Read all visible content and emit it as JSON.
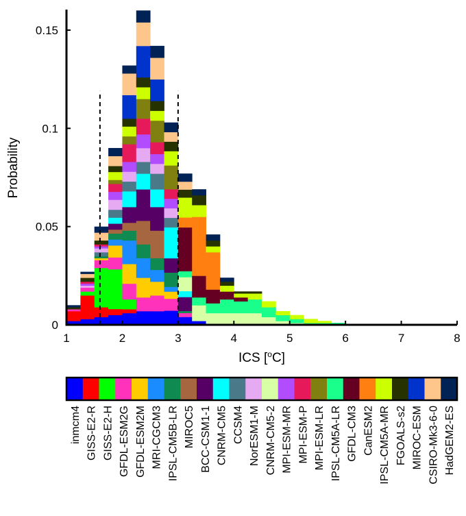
{
  "chart_data": {
    "type": "bar",
    "subtype": "stacked-histogram",
    "xlabel": "ICS [",
    "xlabel_sup": "o",
    "xlabel_unit": "C]",
    "ylabel": "Probability",
    "xlim": [
      1,
      8
    ],
    "ylim": [
      0,
      0.16
    ],
    "xticks": [
      1,
      2,
      3,
      4,
      5,
      6,
      7,
      8
    ],
    "xtick_labels": [
      "1",
      "2",
      "3",
      "4",
      "5",
      "6",
      "7",
      "8"
    ],
    "yticks": [
      0,
      0.05,
      0.1,
      0.15
    ],
    "ytick_labels": [
      "0",
      "0.05",
      "0.1",
      "0.15"
    ],
    "bin_width": 0.25,
    "bin_edges_start": [
      1.0,
      1.25,
      1.5,
      1.75,
      2.0,
      2.25,
      2.5,
      2.75,
      3.0,
      3.25,
      3.5,
      3.75,
      4.0,
      4.25,
      4.5,
      4.75,
      5.0,
      5.25,
      5.5,
      5.75
    ],
    "bin_totals": [
      0.01,
      0.027,
      0.05,
      0.09,
      0.132,
      0.16,
      0.142,
      0.103,
      0.077,
      0.069,
      0.046,
      0.024,
      0.017,
      0.017,
      0.012,
      0.007,
      0.005,
      0.003,
      0.002,
      0.001
    ],
    "dashed_lines_x": [
      1.6,
      3.0
    ],
    "dashed_lines_top": 0.119,
    "legend_position": "bottom",
    "series": [
      {
        "name": "inmcm4",
        "color": "#0000ff",
        "values": [
          0.002,
          0.003,
          0.004,
          0.005,
          0.006,
          0.007,
          0.007,
          0.006,
          0.004,
          0.002,
          0,
          0,
          0,
          0,
          0,
          0,
          0,
          0,
          0,
          0
        ]
      },
      {
        "name": "GISS-E2-R",
        "color": "#ff0000",
        "values": [
          0.005,
          0.012,
          0.005,
          0.003,
          0.002,
          0,
          0,
          0,
          0,
          0,
          0,
          0,
          0,
          0,
          0,
          0,
          0,
          0,
          0,
          0
        ]
      },
      {
        "name": "GISS-E2-H",
        "color": "#00ff00",
        "values": [
          0,
          0.002,
          0.02,
          0.02,
          0.005,
          0,
          0,
          0,
          0,
          0,
          0,
          0,
          0,
          0,
          0,
          0,
          0,
          0,
          0,
          0
        ]
      },
      {
        "name": "GFDL-ESM2G",
        "color": "#ff33bb",
        "values": [
          0.001,
          0.002,
          0.004,
          0.006,
          0.008,
          0.007,
          0.008,
          0.005,
          0.002,
          0,
          0,
          0,
          0,
          0,
          0,
          0,
          0,
          0,
          0,
          0
        ]
      },
      {
        "name": "GFDL-ESM2M",
        "color": "#ffcc00",
        "values": [
          0,
          0,
          0.001,
          0.006,
          0.01,
          0.01,
          0.007,
          0.003,
          0,
          0,
          0,
          0,
          0,
          0,
          0,
          0,
          0,
          0,
          0,
          0
        ]
      },
      {
        "name": "MRI-CGCM3",
        "color": "#1a8cff",
        "values": [
          0,
          0,
          0,
          0.003,
          0.012,
          0.01,
          0.006,
          0.002,
          0,
          0,
          0,
          0,
          0,
          0,
          0,
          0,
          0,
          0,
          0,
          0
        ]
      },
      {
        "name": "IPSL-CM5B-LR",
        "color": "#0f8a50",
        "values": [
          0,
          0,
          0.001,
          0.003,
          0.005,
          0.007,
          0.006,
          0.006,
          0.001,
          0,
          0,
          0,
          0,
          0,
          0,
          0,
          0,
          0,
          0,
          0
        ]
      },
      {
        "name": "MIROC5",
        "color": "#a66640",
        "values": [
          0,
          0,
          0,
          0.002,
          0.004,
          0.012,
          0.014,
          0,
          0,
          0,
          0,
          0,
          0,
          0,
          0,
          0,
          0,
          0,
          0,
          0
        ]
      },
      {
        "name": "BCC-CSM1-1",
        "color": "#560066",
        "values": [
          0,
          0,
          0,
          0.003,
          0.008,
          0.016,
          0.012,
          0.006,
          0.007,
          0,
          0,
          0,
          0,
          0,
          0,
          0,
          0,
          0,
          0,
          0
        ]
      },
      {
        "name": "CNRM-CM5",
        "color": "#00ffff",
        "values": [
          0,
          0,
          0,
          0.003,
          0.008,
          0.008,
          0.009,
          0.013,
          0.003,
          0,
          0,
          0,
          0,
          0,
          0,
          0,
          0,
          0,
          0,
          0
        ]
      },
      {
        "name": "CCSM4",
        "color": "#4a7a8a",
        "values": [
          0,
          0,
          0.002,
          0.004,
          0.005,
          0.006,
          0.008,
          0.004,
          0,
          0,
          0,
          0,
          0,
          0,
          0,
          0,
          0,
          0,
          0,
          0
        ]
      },
      {
        "name": "NorESM1-M",
        "color": "#e6aaf2",
        "values": [
          0,
          0.001,
          0.002,
          0.005,
          0.005,
          0.007,
          0.005,
          0.004,
          0,
          0,
          0,
          0,
          0,
          0,
          0,
          0,
          0,
          0,
          0,
          0
        ]
      },
      {
        "name": "CNRM-CM5-2",
        "color": "#d9ffa6",
        "values": [
          0,
          0,
          0,
          0,
          0,
          0,
          0,
          0,
          0.007,
          0.008,
          0.006,
          0.006,
          0.006,
          0.006,
          0.004,
          0.002,
          0.001,
          0,
          0,
          0
        ]
      },
      {
        "name": "MPI-ESM-MR",
        "color": "#b24dff",
        "values": [
          0,
          0.001,
          0.001,
          0.004,
          0.005,
          0.007,
          0.005,
          0.004,
          0,
          0,
          0,
          0,
          0,
          0,
          0,
          0,
          0,
          0,
          0,
          0
        ]
      },
      {
        "name": "MPI-ESM-P",
        "color": "#e6195a",
        "values": [
          0,
          0.001,
          0.001,
          0.004,
          0.009,
          0.008,
          0.006,
          0.004,
          0,
          0,
          0,
          0,
          0,
          0,
          0,
          0,
          0,
          0,
          0,
          0
        ]
      },
      {
        "name": "MPI-ESM-LR",
        "color": "#808010",
        "values": [
          0,
          0,
          0,
          0.002,
          0.004,
          0.01,
          0.011,
          0.01,
          0,
          0,
          0,
          0,
          0,
          0,
          0,
          0,
          0,
          0,
          0,
          0
        ]
      },
      {
        "name": "IPSL-CM5A-LR",
        "color": "#1aff8c",
        "values": [
          0,
          0,
          0,
          0,
          0,
          0,
          0,
          0,
          0.003,
          0.004,
          0.005,
          0.007,
          0.006,
          0.007,
          0.005,
          0.003,
          0.002,
          0.001,
          0.001,
          0.001
        ]
      },
      {
        "name": "GFDL-CM3",
        "color": "#660022",
        "values": [
          0,
          0,
          0,
          0,
          0,
          0,
          0,
          0,
          0.022,
          0.011,
          0.007,
          0.004,
          0.002,
          0,
          0,
          0,
          0,
          0,
          0,
          0
        ]
      },
      {
        "name": "CanESM2",
        "color": "#ff8010",
        "values": [
          0,
          0,
          0,
          0,
          0,
          0,
          0,
          0,
          0.005,
          0.03,
          0.019,
          0,
          0,
          0,
          0,
          0,
          0,
          0,
          0,
          0
        ]
      },
      {
        "name": "IPSL-CM5A-MR",
        "color": "#ccff00",
        "values": [
          0,
          0,
          0,
          0.004,
          0.005,
          0.006,
          0.005,
          0.006,
          0.01,
          0.006,
          0.003,
          0.003,
          0.002,
          0.003,
          0.003,
          0.002,
          0.002,
          0.002,
          0.001,
          0
        ]
      },
      {
        "name": "FGOALS-s2",
        "color": "#263300",
        "values": [
          0.001,
          0.002,
          0.002,
          0.003,
          0.004,
          0.005,
          0.005,
          0.004,
          0.004,
          0.005,
          0.003,
          0.002,
          0.001,
          0.001,
          0,
          0,
          0,
          0,
          0,
          0
        ]
      },
      {
        "name": "MIROC-ESM",
        "color": "#0033cc",
        "values": [
          0,
          0,
          0,
          0,
          0.012,
          0.016,
          0.011,
          0,
          0,
          0,
          0,
          0,
          0,
          0,
          0,
          0,
          0,
          0,
          0,
          0
        ]
      },
      {
        "name": "CSIRO-Mk3-6-0",
        "color": "#ffc68c",
        "values": [
          0,
          0.002,
          0.004,
          0.005,
          0.011,
          0.012,
          0.011,
          0.004,
          0.004,
          0,
          0,
          0,
          0,
          0,
          0,
          0,
          0,
          0,
          0,
          0
        ]
      },
      {
        "name": "HadGEM2-ES",
        "color": "#002255",
        "values": [
          0.001,
          0.001,
          0.003,
          0.004,
          0.004,
          0.006,
          0.006,
          0.004,
          0.004,
          0.003,
          0.003,
          0.002,
          0,
          0,
          0,
          0,
          0,
          0,
          0,
          0
        ]
      }
    ]
  }
}
